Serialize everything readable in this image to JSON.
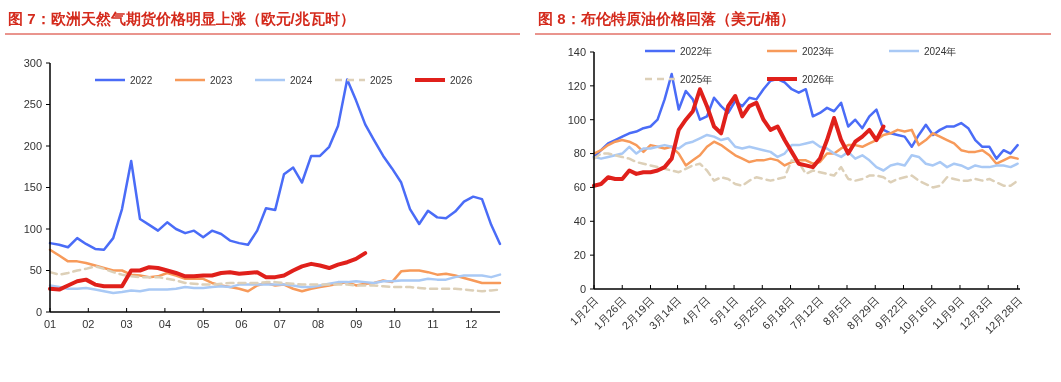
{
  "chart_data": [
    {
      "type": "line",
      "title": "图 7：欧洲天然气期货价格明显上涨（欧元/兆瓦时）",
      "legend": "top",
      "x": [
        1,
        1.24,
        1.47,
        1.71,
        1.94,
        2.18,
        2.41,
        2.65,
        2.88,
        3.12,
        3.35,
        3.59,
        3.82,
        4.06,
        4.29,
        4.53,
        4.76,
        5,
        5.23,
        5.47,
        5.7,
        5.94,
        6.17,
        6.41,
        6.64,
        6.88,
        7.11,
        7.35,
        7.58,
        7.82,
        8.05,
        8.29,
        8.52,
        8.76,
        8.99,
        9.23,
        9.46,
        9.7,
        9.93,
        10.17,
        10.4,
        10.64,
        10.87,
        11.11,
        11.34,
        11.58,
        11.81,
        12.05,
        12.28,
        12.52,
        12.75
      ],
      "xlim": [
        1,
        12.75
      ],
      "xticks": [
        {
          "value": 1,
          "label": "01"
        },
        {
          "value": 2,
          "label": "02"
        },
        {
          "value": 3,
          "label": "03"
        },
        {
          "value": 4,
          "label": "04"
        },
        {
          "value": 5,
          "label": "05"
        },
        {
          "value": 6,
          "label": "06"
        },
        {
          "value": 7,
          "label": "07"
        },
        {
          "value": 8,
          "label": "08"
        },
        {
          "value": 9,
          "label": "09"
        },
        {
          "value": 10,
          "label": "10"
        },
        {
          "value": 11,
          "label": "11"
        },
        {
          "value": 12,
          "label": "12"
        }
      ],
      "ylim": [
        0,
        300
      ],
      "yticks": [
        0,
        50,
        100,
        150,
        200,
        250,
        300
      ],
      "series": [
        {
          "name": "2022",
          "color": "#4a6cf7",
          "line_style": "solid",
          "values": [
            83,
            81,
            78,
            89,
            82,
            76,
            75,
            89,
            124,
            182,
            112,
            105,
            98,
            108,
            100,
            95,
            98,
            90,
            98,
            94,
            86,
            83,
            81,
            98,
            125,
            123,
            166,
            174,
            156,
            188,
            188,
            199,
            224,
            280,
            255,
            226,
            207,
            188,
            173,
            156,
            124,
            106,
            122,
            114,
            113,
            121,
            133,
            139,
            136,
            105,
            82
          ]
        },
        {
          "name": "2023",
          "color": "#f79a5a",
          "line_style": "solid",
          "values": [
            75,
            68,
            61,
            61,
            59,
            56,
            53,
            50,
            50,
            45,
            44,
            42,
            43,
            47,
            44,
            40,
            40,
            40,
            35,
            32,
            30,
            28,
            25,
            32,
            35,
            32,
            33,
            28,
            25,
            28,
            30,
            32,
            34,
            36,
            32,
            34,
            35,
            38,
            36,
            49,
            50,
            50,
            48,
            45,
            46,
            44,
            41,
            38,
            35,
            35,
            35
          ]
        },
        {
          "name": "2024",
          "color": "#a9c9f5",
          "line_style": "solid",
          "values": [
            32,
            30,
            28,
            28,
            29,
            27,
            25,
            23,
            24,
            26,
            25,
            27,
            27,
            27,
            28,
            30,
            29,
            29,
            30,
            31,
            30,
            33,
            33,
            33,
            33,
            33,
            33,
            32,
            30,
            30,
            32,
            34,
            36,
            36,
            37,
            36,
            35,
            37,
            37,
            38,
            38,
            38,
            40,
            39,
            39,
            42,
            44,
            44,
            44,
            42,
            45
          ]
        },
        {
          "name": "2025",
          "color": "#ddd0b8",
          "line_style": "dashed",
          "values": [
            48,
            45,
            47,
            50,
            52,
            55,
            52,
            48,
            45,
            43,
            42,
            42,
            42,
            40,
            38,
            35,
            34,
            33,
            33,
            34,
            35,
            35,
            35,
            35,
            36,
            36,
            35,
            34,
            33,
            33,
            33,
            33,
            33,
            33,
            32,
            32,
            32,
            31,
            30,
            30,
            30,
            29,
            28,
            28,
            28,
            28,
            27,
            26,
            25,
            26,
            27
          ]
        },
        {
          "name": "2026",
          "color": "#e0201b",
          "line_style": "solid",
          "values": [
            28,
            27,
            32,
            37,
            39,
            33,
            31,
            31,
            31,
            50,
            50,
            54,
            53,
            50,
            47,
            43,
            43,
            44,
            44,
            47,
            48,
            46,
            47,
            48,
            42,
            42,
            44,
            50,
            55,
            58,
            56,
            53,
            57,
            60,
            64,
            71,
            null,
            null,
            null,
            null,
            null,
            null,
            null,
            null,
            null,
            null,
            null,
            null,
            null,
            null,
            null
          ]
        }
      ]
    },
    {
      "type": "line",
      "title": "图 8：布伦特原油价格回落（美元/桶）",
      "legend": "top",
      "x": [
        "--01-02",
        "--01-08",
        "--01-14",
        "--01-20",
        "--01-26",
        "--02-01",
        "--02-07",
        "--02-13",
        "--02-19",
        "--02-25",
        "--03-03",
        "--03-09",
        "--03-15",
        "--03-21",
        "--03-27",
        "--04-02",
        "--04-08",
        "--04-14",
        "--04-20",
        "--04-26",
        "--05-02",
        "--05-08",
        "--05-14",
        "--05-20",
        "--05-26",
        "--06-01",
        "--06-07",
        "--06-13",
        "--06-19",
        "--06-25",
        "--07-01",
        "--07-07",
        "--07-13",
        "--07-19",
        "--07-25",
        "--07-31",
        "--08-06",
        "--08-12",
        "--08-18",
        "--08-24",
        "--08-30",
        "--09-05",
        "--09-11",
        "--09-17",
        "--09-23",
        "--09-29",
        "--10-05",
        "--10-11",
        "--10-17",
        "--10-23",
        "--10-29",
        "--11-04",
        "--11-10",
        "--11-16",
        "--11-22",
        "--11-28",
        "--12-04",
        "--12-10",
        "--12-16",
        "--12-22",
        "--12-28"
      ],
      "xlim": [
        "--01-02",
        "--12-30"
      ],
      "xticks": [
        {
          "value": "--01-02",
          "label": "1月2日"
        },
        {
          "value": "--01-26",
          "label": "1月26日"
        },
        {
          "value": "--02-19",
          "label": "2月19日"
        },
        {
          "value": "--03-14",
          "label": "3月14日"
        },
        {
          "value": "--04-07",
          "label": "4月7日"
        },
        {
          "value": "--05-01",
          "label": "5月1日"
        },
        {
          "value": "--05-25",
          "label": "5月25日"
        },
        {
          "value": "--06-18",
          "label": "6月18日"
        },
        {
          "value": "--07-12",
          "label": "7月12日"
        },
        {
          "value": "--08-05",
          "label": "8月5日"
        },
        {
          "value": "--08-29",
          "label": "8月29日"
        },
        {
          "value": "--09-22",
          "label": "9月22日"
        },
        {
          "value": "--10-16",
          "label": "10月16日"
        },
        {
          "value": "--11-09",
          "label": "11月9日"
        },
        {
          "value": "--12-03",
          "label": "12月3日"
        },
        {
          "value": "--12-28",
          "label": "12月28日"
        }
      ],
      "ylim": [
        0,
        140
      ],
      "yticks": [
        0,
        20,
        40,
        60,
        80,
        100,
        120,
        140
      ],
      "series": [
        {
          "name": "2022年",
          "color": "#4a6cf7",
          "line_style": "solid",
          "values": [
            78,
            82,
            86,
            88,
            90,
            92,
            93,
            95,
            96,
            100,
            112,
            127,
            106,
            117,
            112,
            100,
            102,
            113,
            108,
            104,
            111,
            108,
            113,
            112,
            118,
            123,
            124,
            122,
            118,
            116,
            118,
            102,
            104,
            107,
            105,
            110,
            96,
            100,
            95,
            102,
            106,
            94,
            92,
            91,
            90,
            84,
            91,
            97,
            91,
            94,
            96,
            96,
            98,
            95,
            88,
            84,
            84,
            77,
            82,
            80,
            85
          ]
        },
        {
          "name": "2023年",
          "color": "#f79a5a",
          "line_style": "solid",
          "values": [
            80,
            82,
            85,
            87,
            88,
            87,
            85,
            81,
            85,
            84,
            83,
            84,
            80,
            73,
            76,
            79,
            84,
            87,
            85,
            82,
            79,
            77,
            75,
            76,
            76,
            77,
            76,
            73,
            75,
            76,
            76,
            74,
            75,
            80,
            80,
            83,
            85,
            85,
            84,
            86,
            88,
            91,
            92,
            94,
            93,
            94,
            85,
            88,
            92,
            90,
            88,
            86,
            82,
            81,
            81,
            82,
            79,
            74,
            76,
            78,
            77
          ]
        },
        {
          "name": "2024年",
          "color": "#a9c9f5",
          "line_style": "solid",
          "values": [
            78,
            77,
            78,
            79,
            80,
            84,
            80,
            83,
            83,
            84,
            85,
            84,
            83,
            86,
            87,
            89,
            91,
            90,
            88,
            89,
            84,
            83,
            84,
            83,
            82,
            81,
            78,
            80,
            85,
            85,
            86,
            87,
            84,
            83,
            80,
            78,
            81,
            77,
            79,
            76,
            72,
            70,
            73,
            74,
            73,
            79,
            78,
            74,
            73,
            75,
            72,
            74,
            73,
            71,
            73,
            72,
            72,
            73,
            73,
            72,
            74
          ]
        },
        {
          "name": "2025年",
          "color": "#ddd0b8",
          "line_style": "dashed",
          "values": [
            77,
            80,
            80,
            79,
            78,
            77,
            75,
            74,
            73,
            72,
            71,
            70,
            69,
            71,
            73,
            74,
            70,
            64,
            66,
            65,
            62,
            61,
            64,
            66,
            65,
            64,
            65,
            66,
            76,
            75,
            68,
            70,
            69,
            68,
            67,
            72,
            65,
            64,
            65,
            67,
            67,
            66,
            63,
            65,
            66,
            67,
            64,
            62,
            60,
            61,
            66,
            65,
            64,
            64,
            65,
            64,
            65,
            63,
            61,
            61,
            64
          ]
        },
        {
          "name": "2026年",
          "color": "#e0201b",
          "line_style": "solid",
          "values": [
            61,
            62,
            66,
            65,
            65,
            70,
            68,
            69,
            69,
            70,
            72,
            77,
            94,
            100,
            105,
            118,
            108,
            96,
            92,
            108,
            114,
            102,
            108,
            110,
            100,
            94,
            96,
            88,
            81,
            74,
            73,
            72,
            77,
            88,
            101,
            88,
            80,
            87,
            90,
            94,
            88,
            96,
            null,
            null,
            null,
            null,
            null,
            null,
            null,
            null,
            null,
            null,
            null,
            null,
            null,
            null,
            null,
            null,
            null,
            null,
            null
          ]
        }
      ]
    }
  ]
}
